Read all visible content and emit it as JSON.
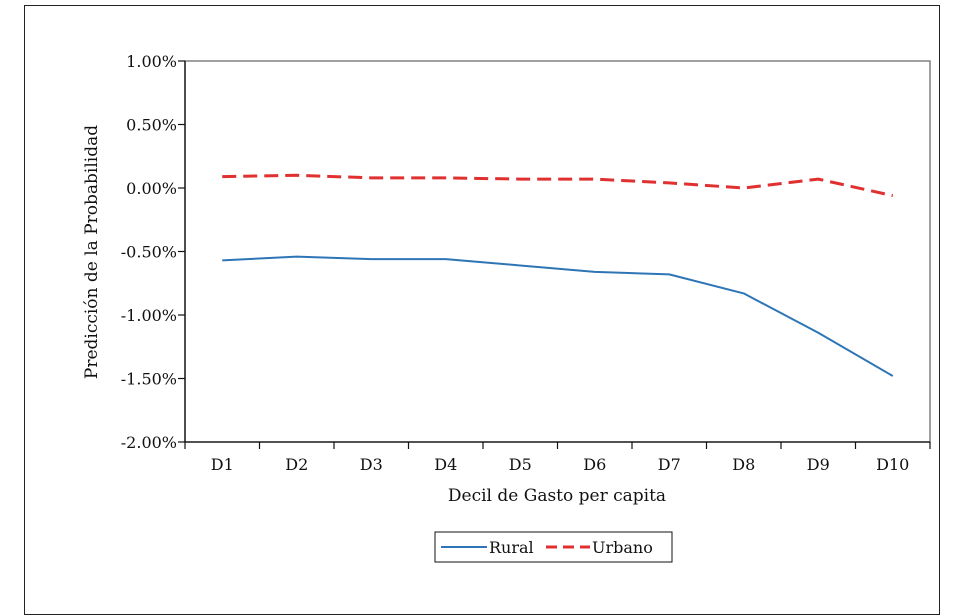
{
  "chart_data": {
    "type": "line",
    "title": "",
    "xlabel": "Decil de Gasto per capita",
    "ylabel": "Predicción de la Probabilidad",
    "categories": [
      "D1",
      "D2",
      "D3",
      "D4",
      "D5",
      "D6",
      "D7",
      "D8",
      "D9",
      "D10"
    ],
    "ylim": [
      -0.02,
      0.01
    ],
    "y_ticks": [
      "1.00%",
      "0.50%",
      "0.00%",
      "-0.50%",
      "-1.00%",
      "-1.50%",
      "-2.00%"
    ],
    "grid": false,
    "legend_position": "bottom",
    "series": [
      {
        "name": "Rural",
        "color": "#2e75b6",
        "style": "solid",
        "values": [
          -0.0057,
          -0.0054,
          -0.0056,
          -0.0056,
          -0.0061,
          -0.0066,
          -0.0068,
          -0.0083,
          -0.0114,
          -0.0148
        ]
      },
      {
        "name": "Urbano",
        "color": "#e03030",
        "style": "dashed",
        "values": [
          0.0009,
          0.001,
          0.0008,
          0.0008,
          0.0007,
          0.0007,
          0.0004,
          0.0,
          0.0007,
          -0.0006
        ]
      }
    ]
  }
}
